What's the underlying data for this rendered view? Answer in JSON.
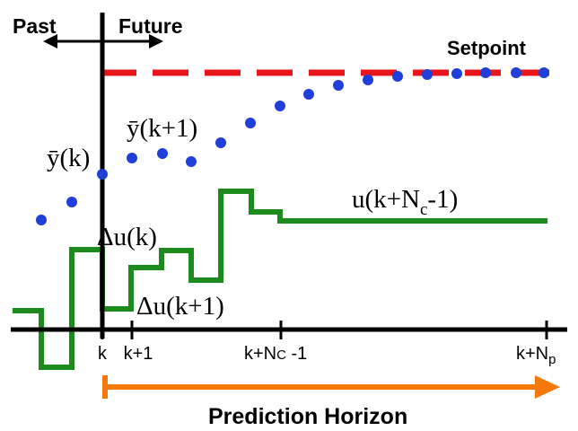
{
  "labels": {
    "past": "Past",
    "future": "Future",
    "setpoint": "Setpoint",
    "y_k": "ȳ(k)",
    "y_k1": "ȳ(k+1)",
    "du_k": "Δu(k)",
    "du_k1": "Δu(k+1)",
    "u_main": "u(k+N",
    "u_sub": "c",
    "u_tail": "-1)",
    "prediction_horizon": "Prediction Horizon"
  },
  "ticks": {
    "k": "k",
    "k1": "k+1",
    "kNc_main": "k+N",
    "kNc_sub": "C",
    "kNc_tail": " -1",
    "kNp_main": "k+N",
    "kNp_sub": "p"
  },
  "colors": {
    "setpoint": "#e8151b",
    "prediction_dots": "#1f3fd8",
    "control_signal": "#1d8a1d",
    "horizon_arrow": "#f5780a",
    "axes": "#000000"
  },
  "icons": {
    "past_future_arrow": "double-headed-arrow-icon",
    "horizon_arrow": "right-arrow-icon"
  }
}
